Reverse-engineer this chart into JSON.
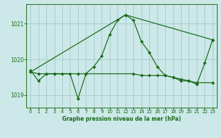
{
  "xlabel": "Graphe pression niveau de la mer (hPa)",
  "xlim": [
    -0.5,
    23.5
  ],
  "ylim": [
    1018.65,
    1021.55
  ],
  "yticks": [
    1019,
    1020,
    1021
  ],
  "xticks": [
    0,
    1,
    2,
    3,
    4,
    5,
    6,
    7,
    8,
    9,
    10,
    11,
    12,
    13,
    14,
    15,
    16,
    17,
    18,
    19,
    20,
    21,
    22,
    23
  ],
  "bg_color": "#cce8e8",
  "grid_color": "#aacccc",
  "line_color": "#1a6b1a",
  "series1": {
    "x": [
      0,
      1,
      2,
      3,
      4,
      5,
      6,
      7,
      8,
      9,
      10,
      11,
      12,
      13,
      14,
      15,
      16,
      17,
      18,
      19,
      20,
      21,
      22,
      23
    ],
    "y": [
      1019.7,
      1019.4,
      1019.6,
      1019.6,
      1019.6,
      1019.6,
      1018.9,
      1019.6,
      1019.8,
      1020.1,
      1020.7,
      1021.1,
      1021.25,
      1021.1,
      1020.5,
      1020.2,
      1019.8,
      1019.55,
      1019.5,
      1019.4,
      1019.4,
      1019.3,
      1019.9,
      1020.55
    ]
  },
  "series2": {
    "x": [
      0,
      12,
      23
    ],
    "y": [
      1019.65,
      1021.25,
      1020.55
    ]
  },
  "series3": {
    "x": [
      0,
      1,
      2,
      3,
      6,
      7,
      13,
      14,
      15,
      16,
      17,
      18,
      19,
      20,
      21,
      23
    ],
    "y": [
      1019.65,
      1019.6,
      1019.6,
      1019.6,
      1019.6,
      1019.6,
      1019.6,
      1019.55,
      1019.55,
      1019.55,
      1019.55,
      1019.5,
      1019.45,
      1019.4,
      1019.35,
      1019.35
    ]
  }
}
